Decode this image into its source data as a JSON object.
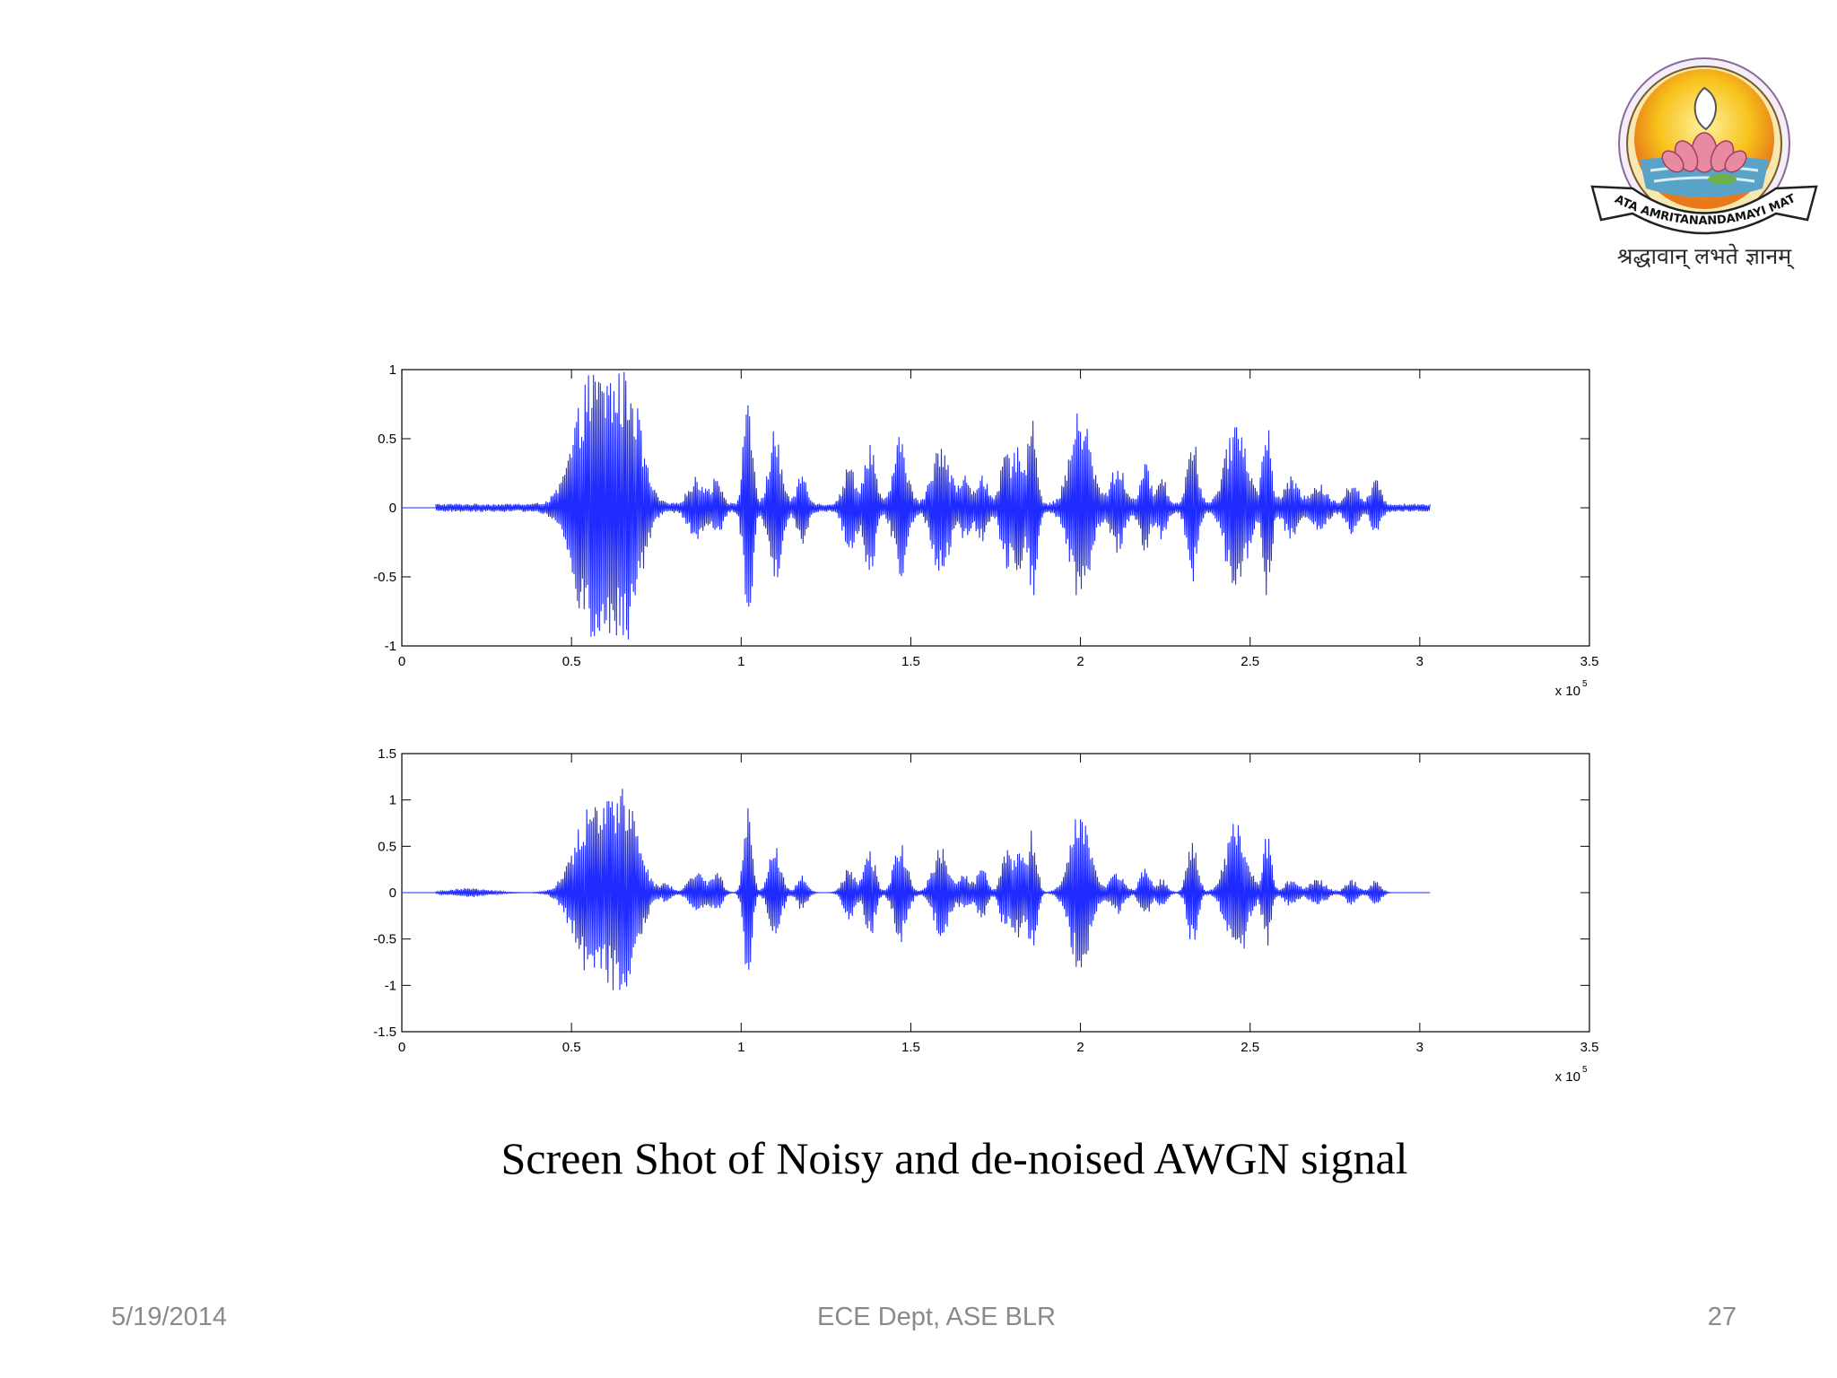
{
  "caption": "Screen Shot of Noisy and de-noised AWGN signal",
  "footer": {
    "date": "5/19/2014",
    "center": "ECE Dept, ASE BLR",
    "page": "27"
  },
  "logo": {
    "banner_text": "MATA AMRITANANDAMAYI MATH",
    "motto": "श्रद्धावान् लभते ज्ञानम्"
  },
  "colors": {
    "signal": "#1f2bff",
    "signal_fill": "#5a64ee",
    "axes": "#000000"
  },
  "chart_data": [
    {
      "type": "line",
      "name": "noisy",
      "xlim": [
        0,
        350000
      ],
      "ylim": [
        -1,
        1
      ],
      "xticks": [
        0,
        0.5,
        1,
        1.5,
        2,
        2.5,
        3,
        3.5
      ],
      "xtick_labels": [
        "0",
        "0.5",
        "1",
        "1.5",
        "2",
        "2.5",
        "3",
        "3.5"
      ],
      "yticks": [
        -1,
        -0.5,
        0,
        0.5,
        1
      ],
      "ytick_labels": [
        "-1",
        "-0.5",
        "0",
        "0.5",
        "1"
      ],
      "x_multiplier_label": "x 10",
      "x_multiplier_exp": "5",
      "signal_extent": [
        10000,
        303000
      ],
      "noise_floor": 0.03,
      "bursts": [
        {
          "center": 56000,
          "width": 5000,
          "amp": 0.95
        },
        {
          "center": 66000,
          "width": 4000,
          "amp": 1.0
        },
        {
          "center": 87000,
          "width": 2500,
          "amp": 0.2
        },
        {
          "center": 93000,
          "width": 1500,
          "amp": 0.2
        },
        {
          "center": 102000,
          "width": 1200,
          "amp": 0.95
        },
        {
          "center": 110000,
          "width": 1800,
          "amp": 0.55
        },
        {
          "center": 118000,
          "width": 1500,
          "amp": 0.25
        },
        {
          "center": 132000,
          "width": 1800,
          "amp": 0.3
        },
        {
          "center": 138000,
          "width": 1500,
          "amp": 0.5
        },
        {
          "center": 147000,
          "width": 2000,
          "amp": 0.5
        },
        {
          "center": 159000,
          "width": 2500,
          "amp": 0.5
        },
        {
          "center": 166000,
          "width": 1500,
          "amp": 0.2
        },
        {
          "center": 171000,
          "width": 1500,
          "amp": 0.25
        },
        {
          "center": 178000,
          "width": 1500,
          "amp": 0.4
        },
        {
          "center": 182000,
          "width": 1500,
          "amp": 0.45
        },
        {
          "center": 186000,
          "width": 1200,
          "amp": 0.7
        },
        {
          "center": 200000,
          "width": 3000,
          "amp": 0.7
        },
        {
          "center": 211000,
          "width": 2000,
          "amp": 0.3
        },
        {
          "center": 219000,
          "width": 1500,
          "amp": 0.3
        },
        {
          "center": 224000,
          "width": 1500,
          "amp": 0.2
        },
        {
          "center": 233000,
          "width": 1500,
          "amp": 0.55
        },
        {
          "center": 246000,
          "width": 3000,
          "amp": 0.65
        },
        {
          "center": 255000,
          "width": 1200,
          "amp": 0.65
        },
        {
          "center": 262000,
          "width": 2000,
          "amp": 0.2
        },
        {
          "center": 270000,
          "width": 2500,
          "amp": 0.15
        },
        {
          "center": 280000,
          "width": 1800,
          "amp": 0.18
        },
        {
          "center": 287000,
          "width": 1500,
          "amp": 0.18
        }
      ]
    },
    {
      "type": "line",
      "name": "de-noised",
      "xlim": [
        0,
        350000
      ],
      "ylim": [
        -1.5,
        1.5
      ],
      "xticks": [
        0,
        0.5,
        1,
        1.5,
        2,
        2.5,
        3,
        3.5
      ],
      "xtick_labels": [
        "0",
        "0.5",
        "1",
        "1.5",
        "2",
        "2.5",
        "3",
        "3.5"
      ],
      "yticks": [
        -1.5,
        -1,
        -0.5,
        0,
        0.5,
        1,
        1.5
      ],
      "ytick_labels": [
        "-1.5",
        "-1",
        "-0.5",
        "0",
        "0.5",
        "1",
        "1.5"
      ],
      "x_multiplier_label": "x 10",
      "x_multiplier_exp": "5",
      "signal_extent": [
        10000,
        303000
      ],
      "noise_floor": 0.0,
      "bursts": [
        {
          "center": 20000,
          "width": 6000,
          "amp": 0.05
        },
        {
          "center": 56000,
          "width": 5000,
          "amp": 0.95
        },
        {
          "center": 66000,
          "width": 4000,
          "amp": 1.0
        },
        {
          "center": 78000,
          "width": 1500,
          "amp": 0.1
        },
        {
          "center": 87000,
          "width": 2500,
          "amp": 0.22
        },
        {
          "center": 93000,
          "width": 1500,
          "amp": 0.22
        },
        {
          "center": 102000,
          "width": 1200,
          "amp": 0.95
        },
        {
          "center": 110000,
          "width": 1800,
          "amp": 0.55
        },
        {
          "center": 118000,
          "width": 1500,
          "amp": 0.2
        },
        {
          "center": 132000,
          "width": 1800,
          "amp": 0.3
        },
        {
          "center": 138000,
          "width": 1500,
          "amp": 0.5
        },
        {
          "center": 147000,
          "width": 2000,
          "amp": 0.55
        },
        {
          "center": 159000,
          "width": 2500,
          "amp": 0.5
        },
        {
          "center": 166000,
          "width": 1500,
          "amp": 0.2
        },
        {
          "center": 171000,
          "width": 1500,
          "amp": 0.3
        },
        {
          "center": 178000,
          "width": 1500,
          "amp": 0.45
        },
        {
          "center": 182000,
          "width": 1500,
          "amp": 0.5
        },
        {
          "center": 186000,
          "width": 1200,
          "amp": 0.7
        },
        {
          "center": 200000,
          "width": 3000,
          "amp": 0.9
        },
        {
          "center": 211000,
          "width": 2000,
          "amp": 0.25
        },
        {
          "center": 219000,
          "width": 1500,
          "amp": 0.3
        },
        {
          "center": 224000,
          "width": 1500,
          "amp": 0.15
        },
        {
          "center": 233000,
          "width": 1500,
          "amp": 0.6
        },
        {
          "center": 246000,
          "width": 3000,
          "amp": 0.8
        },
        {
          "center": 255000,
          "width": 1200,
          "amp": 0.65
        },
        {
          "center": 262000,
          "width": 2000,
          "amp": 0.15
        },
        {
          "center": 270000,
          "width": 2500,
          "amp": 0.15
        },
        {
          "center": 280000,
          "width": 1800,
          "amp": 0.15
        },
        {
          "center": 287000,
          "width": 1500,
          "amp": 0.15
        }
      ]
    }
  ]
}
